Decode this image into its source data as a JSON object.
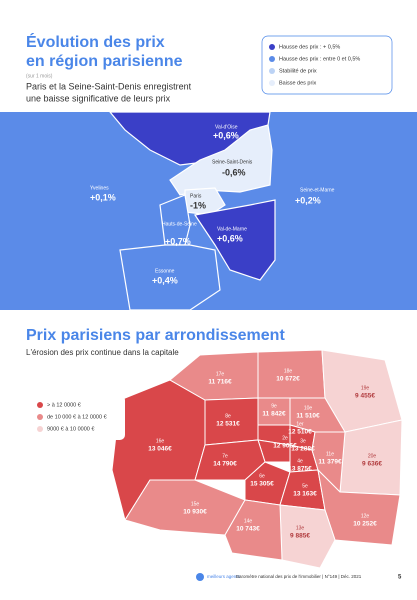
{
  "section1": {
    "title_line1": "Évolution des prix",
    "title_line2": "en région parisienne",
    "note": "(sur 1 mois)",
    "heading_line1": "Paris et la Seine-Saint-Denis enregistrent",
    "heading_line2": "une baisse significative de leurs prix",
    "legend": [
      "Hausse des prix : + 0,5%",
      "Hausse des prix : entre 0 et 0,5%",
      "Stabilité de prix",
      "Baisse des prix"
    ],
    "regions": [
      {
        "name": "Val-d'Oise",
        "value": "+0,6%"
      },
      {
        "name": "Seine-Saint-Denis",
        "value": "-0,6%"
      },
      {
        "name": "Yvelines",
        "value": "+0,1%"
      },
      {
        "name": "Paris",
        "value": "-1%"
      },
      {
        "name": "Seine-et-Marne",
        "value": "+0,2%"
      },
      {
        "name": "Hauts-de-Seine",
        "value": "+0,7%"
      },
      {
        "name": "Val-de-Marne",
        "value": "+0,6%"
      },
      {
        "name": "Essonne",
        "value": "+0,4%"
      }
    ]
  },
  "section2": {
    "title": "Prix parisiens par arrondissement",
    "subtitle": "L'érosion des prix continue dans la capitale",
    "legend": [
      "> à 12 0000 €",
      "de 10 000 € à 12 0000 €",
      "9000 € à 10 0000 €"
    ],
    "arrondissements": [
      {
        "label": "1er",
        "price": "12 510€"
      },
      {
        "label": "2e",
        "price": "12 906€"
      },
      {
        "label": "3e",
        "price": "13 288€"
      },
      {
        "label": "4e",
        "price": "13 875€"
      },
      {
        "label": "5e",
        "price": "13 163€"
      },
      {
        "label": "6e",
        "price": "15 305€"
      },
      {
        "label": "7e",
        "price": "14 790€"
      },
      {
        "label": "8e",
        "price": "12 531€"
      },
      {
        "label": "9e",
        "price": "11 842€"
      },
      {
        "label": "10e",
        "price": "11 510€"
      },
      {
        "label": "11e",
        "price": "11 379€"
      },
      {
        "label": "12e",
        "price": "10 252€"
      },
      {
        "label": "13e",
        "price": "9 885€"
      },
      {
        "label": "14e",
        "price": "10 743€"
      },
      {
        "label": "15e",
        "price": "10 930€"
      },
      {
        "label": "16e",
        "price": "13 046€"
      },
      {
        "label": "17e",
        "price": "11 716€"
      },
      {
        "label": "18e",
        "price": "10 672€"
      },
      {
        "label": "19e",
        "price": "9 455€"
      },
      {
        "label": "20e",
        "price": "9 636€"
      }
    ]
  },
  "footer": {
    "brand": "meilleurs agents",
    "text": "Baromètre national des prix de l'immobilier | N°149 | Déc. 2021",
    "page": "5"
  }
}
